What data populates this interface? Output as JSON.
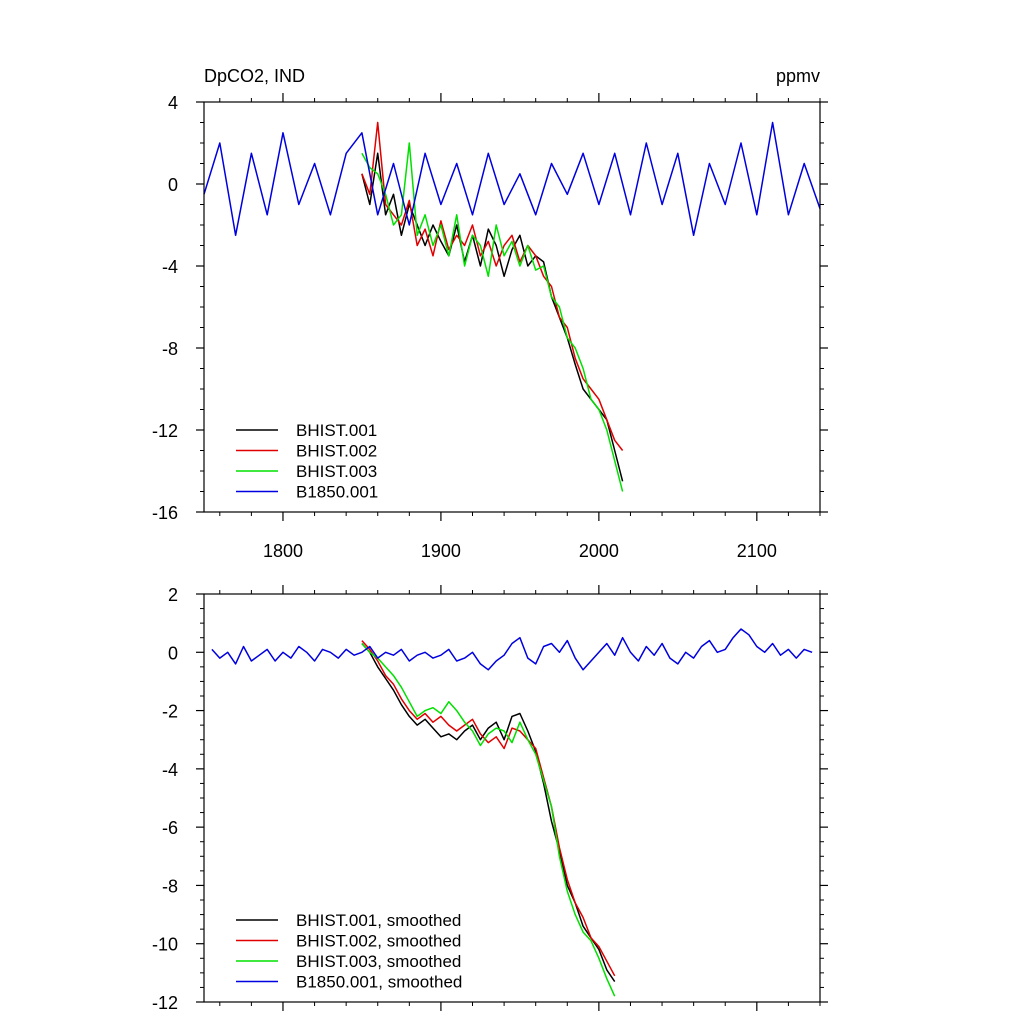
{
  "title_left": "DpCO2, IND",
  "title_right": "ppmv",
  "colors": {
    "BHIST.001": "#000000",
    "BHIST.002": "#e00000",
    "BHIST.003": "#00e000",
    "B1850.001": "#0000e0"
  },
  "chart_data": [
    {
      "type": "line",
      "title": "DpCO2, IND",
      "units": "ppmv",
      "xlabel": "",
      "ylabel": "",
      "xlim": [
        1750,
        2140
      ],
      "ylim": [
        -16,
        4
      ],
      "x_ticks": [
        1800,
        1900,
        2000,
        2100
      ],
      "x_tick_labels": [
        "1800",
        "1900",
        "2000",
        "2100"
      ],
      "y_ticks": [
        -16,
        -12,
        -8,
        -4,
        0,
        4
      ],
      "y_tick_labels": [
        "-16",
        "-12",
        "-8",
        "-4",
        "0",
        "4"
      ],
      "legend_position": "bottom-left",
      "grid": false,
      "series": [
        {
          "name": "BHIST.001",
          "color": "#000000",
          "x": [
            1850,
            1855,
            1860,
            1865,
            1870,
            1875,
            1880,
            1885,
            1890,
            1895,
            1900,
            1905,
            1910,
            1915,
            1920,
            1925,
            1930,
            1935,
            1940,
            1945,
            1950,
            1955,
            1960,
            1965,
            1970,
            1975,
            1980,
            1985,
            1990,
            1995,
            2000,
            2005,
            2010,
            2015
          ],
          "values": [
            0.5,
            -1.0,
            1.5,
            -1.5,
            -0.5,
            -2.5,
            -1.0,
            -2.0,
            -3.0,
            -2.0,
            -2.8,
            -3.5,
            -2.0,
            -3.8,
            -2.5,
            -4.0,
            -2.2,
            -3.0,
            -4.5,
            -3.2,
            -2.5,
            -4.0,
            -3.5,
            -3.8,
            -5.5,
            -6.5,
            -7.5,
            -8.8,
            -10.0,
            -10.5,
            -11.0,
            -11.5,
            -13.0,
            -14.5
          ]
        },
        {
          "name": "BHIST.002",
          "color": "#e00000",
          "x": [
            1850,
            1855,
            1860,
            1865,
            1870,
            1875,
            1880,
            1885,
            1890,
            1895,
            1900,
            1905,
            1910,
            1915,
            1920,
            1925,
            1930,
            1935,
            1940,
            1945,
            1950,
            1955,
            1960,
            1965,
            1970,
            1975,
            1980,
            1985,
            1990,
            1995,
            2000,
            2005,
            2010,
            2015
          ],
          "values": [
            0.5,
            -0.5,
            3.0,
            -1.0,
            -1.5,
            -2.0,
            -0.8,
            -3.0,
            -2.2,
            -3.5,
            -1.8,
            -3.2,
            -2.5,
            -3.0,
            -2.0,
            -3.5,
            -2.8,
            -4.0,
            -3.0,
            -2.5,
            -3.8,
            -3.0,
            -3.5,
            -4.5,
            -5.0,
            -6.5,
            -7.0,
            -8.5,
            -9.5,
            -10.0,
            -10.5,
            -11.5,
            -12.5,
            -13.0
          ]
        },
        {
          "name": "BHIST.003",
          "color": "#00e000",
          "x": [
            1850,
            1855,
            1860,
            1865,
            1870,
            1875,
            1880,
            1885,
            1890,
            1895,
            1900,
            1905,
            1910,
            1915,
            1920,
            1925,
            1930,
            1935,
            1940,
            1945,
            1950,
            1955,
            1960,
            1965,
            1970,
            1975,
            1980,
            1985,
            1990,
            1995,
            2000,
            2005,
            2010,
            2015
          ],
          "values": [
            1.5,
            0.8,
            0.5,
            -0.5,
            -2.0,
            -1.5,
            2.0,
            -2.5,
            -1.5,
            -3.0,
            -2.0,
            -3.5,
            -1.5,
            -4.0,
            -2.5,
            -3.0,
            -4.5,
            -2.0,
            -3.5,
            -2.8,
            -4.0,
            -3.0,
            -4.2,
            -4.0,
            -5.5,
            -6.0,
            -7.5,
            -8.0,
            -9.0,
            -10.5,
            -11.0,
            -12.0,
            -13.5,
            -15.0
          ]
        },
        {
          "name": "B1850.001",
          "color": "#0000e0",
          "x": [
            1750,
            1760,
            1770,
            1780,
            1790,
            1800,
            1810,
            1820,
            1830,
            1840,
            1850,
            1860,
            1870,
            1880,
            1890,
            1900,
            1910,
            1920,
            1930,
            1940,
            1950,
            1960,
            1970,
            1980,
            1990,
            2000,
            2010,
            2020,
            2030,
            2040,
            2050,
            2060,
            2070,
            2080,
            2090,
            2100,
            2110,
            2120,
            2130,
            2140
          ],
          "values": [
            -0.5,
            2.0,
            -2.5,
            1.5,
            -1.5,
            2.5,
            -1.0,
            1.0,
            -1.5,
            1.5,
            2.5,
            -1.5,
            1.0,
            -2.0,
            1.5,
            -1.0,
            1.0,
            -1.5,
            1.5,
            -1.0,
            0.5,
            -1.5,
            1.0,
            -0.5,
            1.5,
            -1.0,
            1.5,
            -1.5,
            2.0,
            -1.0,
            1.5,
            -2.5,
            1.0,
            -1.0,
            2.0,
            -1.5,
            3.0,
            -1.5,
            1.0,
            -1.2
          ]
        }
      ]
    },
    {
      "type": "line",
      "title": "",
      "xlabel": "",
      "ylabel": "",
      "xlim": [
        1750,
        2140
      ],
      "ylim": [
        -12,
        2
      ],
      "x_ticks": [
        1800,
        1900,
        2000,
        2100
      ],
      "x_tick_labels": [],
      "y_ticks": [
        -12,
        -10,
        -8,
        -6,
        -4,
        -2,
        0,
        2
      ],
      "y_tick_labels": [
        "-12",
        "-10",
        "-8",
        "-6",
        "-4",
        "-2",
        "0",
        "2"
      ],
      "legend_position": "bottom-left",
      "grid": false,
      "series": [
        {
          "name": "BHIST.001, smoothed",
          "color": "#000000",
          "x": [
            1850,
            1855,
            1860,
            1865,
            1870,
            1875,
            1880,
            1885,
            1890,
            1895,
            1900,
            1905,
            1910,
            1915,
            1920,
            1925,
            1930,
            1935,
            1940,
            1945,
            1950,
            1955,
            1960,
            1965,
            1970,
            1975,
            1980,
            1985,
            1990,
            1995,
            2000,
            2005,
            2010
          ],
          "values": [
            0.3,
            0.0,
            -0.5,
            -0.9,
            -1.3,
            -1.8,
            -2.2,
            -2.5,
            -2.3,
            -2.6,
            -2.9,
            -2.8,
            -3.0,
            -2.7,
            -2.5,
            -3.0,
            -2.6,
            -2.4,
            -3.0,
            -2.2,
            -2.1,
            -2.7,
            -3.4,
            -4.5,
            -5.8,
            -6.8,
            -8.0,
            -8.6,
            -9.4,
            -9.8,
            -10.2,
            -10.9,
            -11.3
          ]
        },
        {
          "name": "BHIST.002, smoothed",
          "color": "#e00000",
          "x": [
            1850,
            1855,
            1860,
            1865,
            1870,
            1875,
            1880,
            1885,
            1890,
            1895,
            1900,
            1905,
            1910,
            1915,
            1920,
            1925,
            1930,
            1935,
            1940,
            1945,
            1950,
            1955,
            1960,
            1965,
            1970,
            1975,
            1980,
            1985,
            1990,
            1995,
            2000,
            2005,
            2010
          ],
          "values": [
            0.4,
            0.1,
            -0.3,
            -0.8,
            -1.1,
            -1.6,
            -2.0,
            -2.3,
            -2.1,
            -2.4,
            -2.2,
            -2.5,
            -2.7,
            -2.5,
            -2.3,
            -2.8,
            -3.1,
            -2.9,
            -3.3,
            -2.6,
            -2.7,
            -3.0,
            -3.3,
            -4.3,
            -5.3,
            -6.7,
            -7.8,
            -8.6,
            -9.1,
            -9.8,
            -10.1,
            -10.6,
            -11.1
          ]
        },
        {
          "name": "BHIST.003, smoothed",
          "color": "#00e000",
          "x": [
            1850,
            1855,
            1860,
            1865,
            1870,
            1875,
            1880,
            1885,
            1890,
            1895,
            1900,
            1905,
            1910,
            1915,
            1920,
            1925,
            1930,
            1935,
            1940,
            1945,
            1950,
            1955,
            1960,
            1965,
            1970,
            1975,
            1980,
            1985,
            1990,
            1995,
            2000,
            2005,
            2010
          ],
          "values": [
            0.3,
            0.0,
            -0.2,
            -0.5,
            -0.8,
            -1.2,
            -1.7,
            -2.2,
            -2.0,
            -1.9,
            -2.1,
            -1.7,
            -2.0,
            -2.4,
            -2.7,
            -3.2,
            -2.8,
            -2.6,
            -2.7,
            -3.1,
            -2.4,
            -3.0,
            -3.5,
            -4.4,
            -5.3,
            -7.0,
            -8.2,
            -9.0,
            -9.6,
            -9.9,
            -10.5,
            -11.2,
            -11.8
          ]
        },
        {
          "name": "B1850.001, smoothed",
          "color": "#0000e0",
          "x": [
            1755,
            1760,
            1765,
            1770,
            1775,
            1780,
            1785,
            1790,
            1795,
            1800,
            1805,
            1810,
            1815,
            1820,
            1825,
            1830,
            1835,
            1840,
            1845,
            1850,
            1855,
            1860,
            1865,
            1870,
            1875,
            1880,
            1885,
            1890,
            1895,
            1900,
            1905,
            1910,
            1915,
            1920,
            1925,
            1930,
            1935,
            1940,
            1945,
            1950,
            1955,
            1960,
            1965,
            1970,
            1975,
            1980,
            1985,
            1990,
            1995,
            2000,
            2005,
            2010,
            2015,
            2020,
            2025,
            2030,
            2035,
            2040,
            2045,
            2050,
            2055,
            2060,
            2065,
            2070,
            2075,
            2080,
            2085,
            2090,
            2095,
            2100,
            2105,
            2110,
            2115,
            2120,
            2125,
            2130,
            2135
          ],
          "values": [
            0.1,
            -0.2,
            0.0,
            -0.4,
            0.2,
            -0.3,
            -0.1,
            0.1,
            -0.3,
            0.0,
            -0.2,
            0.2,
            0.0,
            -0.3,
            0.1,
            0.0,
            -0.2,
            0.1,
            -0.1,
            0.0,
            0.2,
            -0.2,
            0.0,
            -0.1,
            0.1,
            -0.3,
            -0.1,
            0.0,
            -0.2,
            -0.1,
            0.1,
            -0.3,
            -0.2,
            0.0,
            -0.4,
            -0.6,
            -0.3,
            -0.1,
            0.3,
            0.5,
            -0.2,
            -0.4,
            0.2,
            0.3,
            0.0,
            0.4,
            -0.2,
            -0.6,
            -0.3,
            0.0,
            0.3,
            -0.1,
            0.5,
            0.0,
            -0.3,
            0.2,
            -0.1,
            0.3,
            -0.2,
            -0.4,
            0.0,
            -0.2,
            0.2,
            0.4,
            0.0,
            0.1,
            0.5,
            0.8,
            0.6,
            0.2,
            0.0,
            0.3,
            -0.1,
            0.1,
            -0.2,
            0.1,
            0.0
          ]
        }
      ]
    }
  ]
}
